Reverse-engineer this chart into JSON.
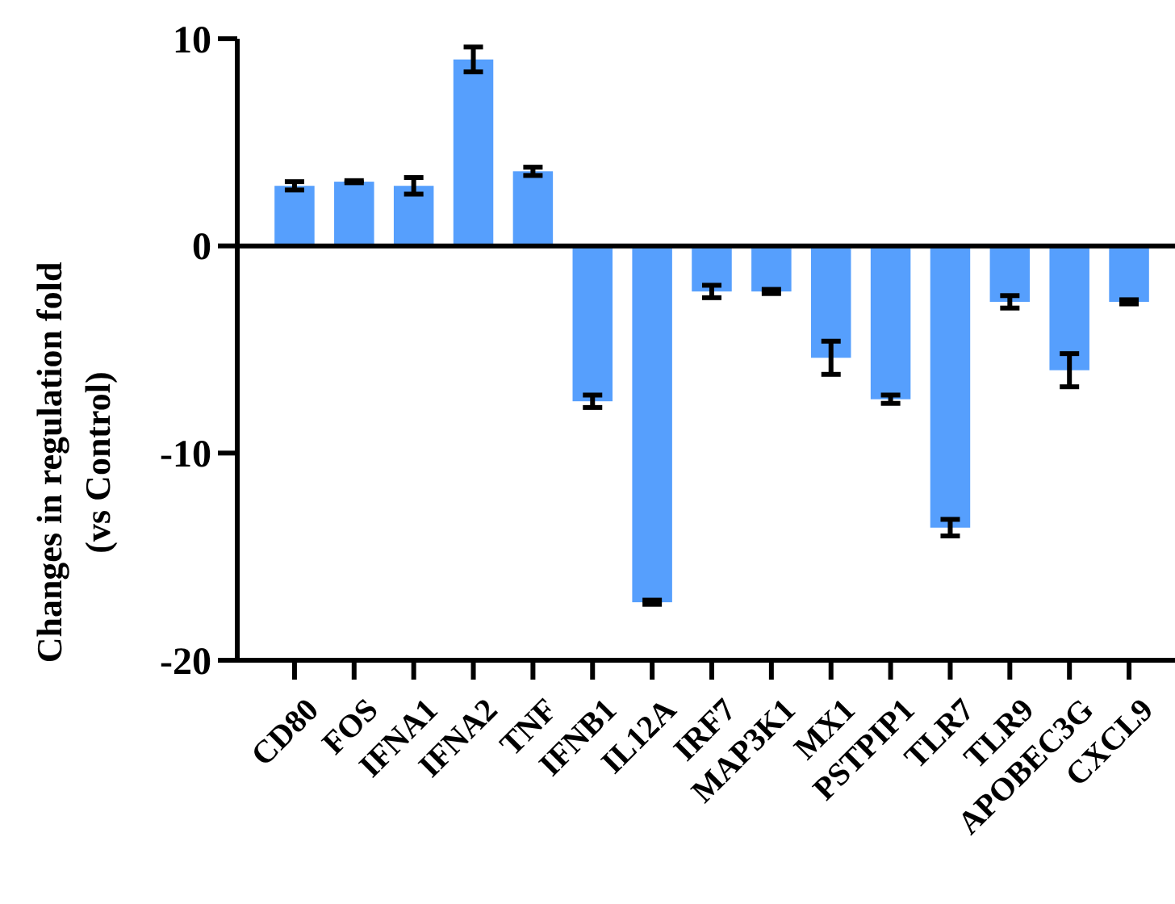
{
  "chart_data": {
    "type": "bar",
    "ylabel": "Changes in regulation fold\n(vs Control)",
    "categories": [
      "CD80",
      "FOS",
      "IFNA1",
      "IFNA2",
      "TNF",
      "IFNB1",
      "IL12A",
      "IRF7",
      "MAP3K1",
      "MX1",
      "PSTPIP1",
      "TLR7",
      "TLR9",
      "APOBEC3G",
      "CXCL9"
    ],
    "values": [
      2.9,
      3.1,
      2.9,
      9.0,
      3.6,
      -7.5,
      -17.2,
      -2.2,
      -2.2,
      -5.4,
      -7.4,
      -13.6,
      -2.7,
      -6.0,
      -2.7
    ],
    "errors": [
      0.2,
      0.05,
      0.4,
      0.6,
      0.2,
      0.3,
      0.1,
      0.3,
      0.1,
      0.8,
      0.2,
      0.4,
      0.3,
      0.8,
      0.1
    ],
    "color": "#569ffd",
    "ylim": [
      -20,
      10
    ],
    "yticks": [
      -20,
      -10,
      0,
      10
    ]
  }
}
